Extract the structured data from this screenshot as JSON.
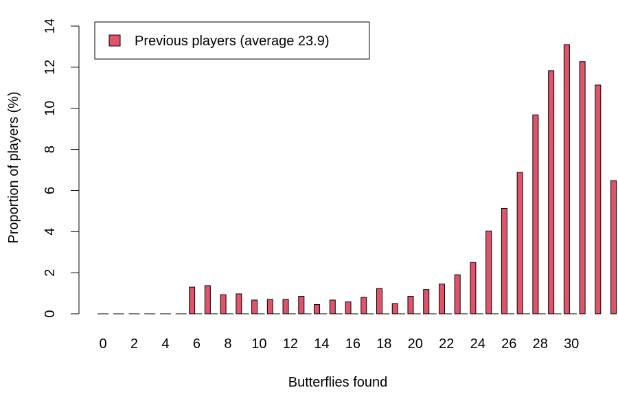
{
  "chart_data": {
    "type": "bar",
    "xlabel": "Butterflies found",
    "ylabel": "Proportion of players (%)",
    "ylim": [
      0,
      14
    ],
    "yticks": [
      0,
      2,
      4,
      6,
      8,
      10,
      12,
      14
    ],
    "xtick_labels": [
      "0",
      "2",
      "4",
      "6",
      "8",
      "10",
      "12",
      "14",
      "16",
      "18",
      "20",
      "22",
      "24",
      "26",
      "28",
      "30"
    ],
    "categories": [
      0,
      1,
      2,
      3,
      4,
      5,
      6,
      7,
      8,
      9,
      10,
      11,
      12,
      13,
      14,
      15,
      16,
      17,
      18,
      19,
      20,
      21,
      22,
      23,
      24,
      25,
      26,
      27,
      28,
      29,
      30
    ],
    "series": [
      {
        "name": "Previous players (average 23.9)",
        "color": "#df536b",
        "values": [
          0,
          0,
          0,
          1.3,
          1.37,
          0.93,
          0.97,
          0.67,
          0.7,
          0.7,
          0.85,
          0.45,
          0.67,
          0.58,
          0.8,
          1.23,
          0.5,
          0.85,
          1.18,
          1.45,
          1.9,
          2.5,
          4.03,
          5.13,
          6.88,
          9.68,
          11.83,
          13.1,
          12.27,
          11.13,
          6.48
        ]
      }
    ],
    "grid": false,
    "legend_position": "top-left"
  }
}
